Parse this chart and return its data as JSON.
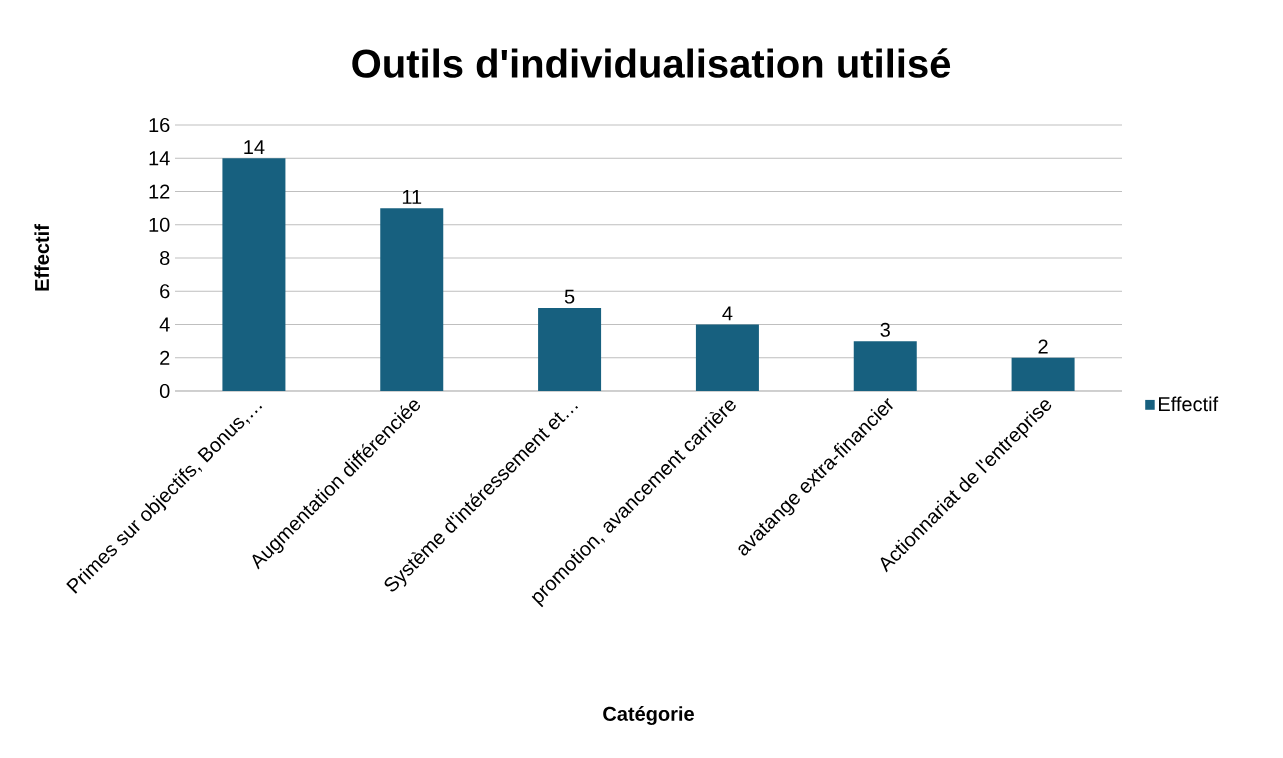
{
  "chart_data": {
    "type": "bar",
    "title": "Outils d'individualisation utilisé",
    "xlabel": "Catégorie",
    "ylabel": "Effectif",
    "categories": [
      "Primes sur objectifs, Bonus,…",
      "Augmentation différenciée",
      "Système d'intéressement et…",
      "promotion, avancement carrière",
      "avatange extra-financier",
      "Actionnariat de l'entreprise"
    ],
    "series": [
      {
        "name": "Effectif",
        "color": "#17607f",
        "values": [
          14,
          11,
          5,
          4,
          3,
          2
        ]
      }
    ],
    "ylim": [
      0,
      16
    ],
    "yticks": [
      0,
      2,
      4,
      6,
      8,
      10,
      12,
      14,
      16
    ],
    "grid": "y",
    "legend": "right",
    "data_labels": true
  }
}
